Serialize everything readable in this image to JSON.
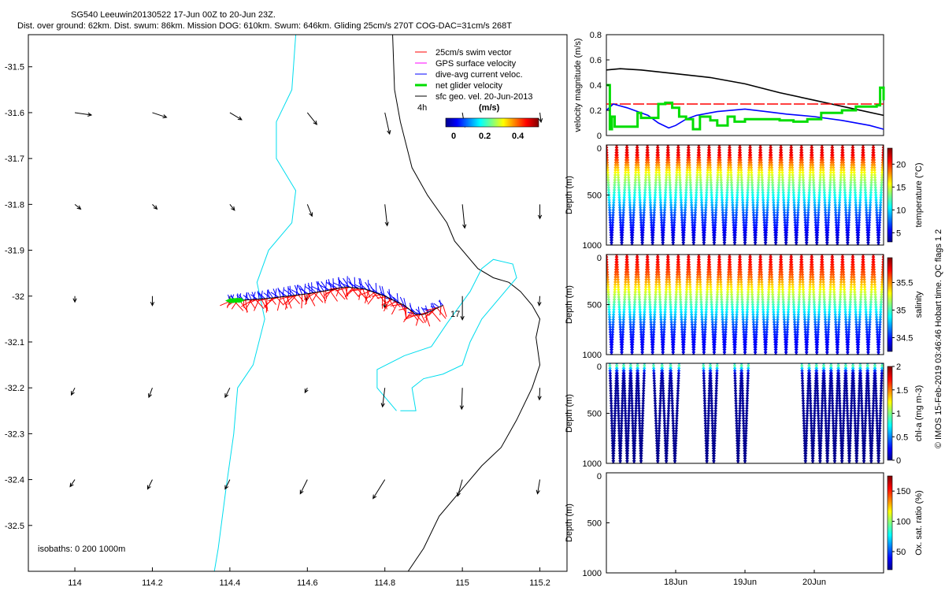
{
  "header": {
    "title": "SG540 Leeuwin20130522 17-Jun 00Z to 20-Jun 23Z.",
    "subtitle": "Dist. over ground: 62km. Dist. swum: 86km. Mission DOG: 610km. Swum: 646km. Gliding 25cm/s 270T COG-DAC=31cm/s 268T"
  },
  "side_caption": "© IMOS 15-Feb-2019 03:46:46 Hobart time. QC flags 1  2",
  "colors": {
    "swim": "#ff0000",
    "gps": "#ff00ff",
    "dac": "#0000ff",
    "net": "#00dd00",
    "geo": "#000000",
    "isobath": "#00ddee",
    "coast": "#000000"
  },
  "chart_data": [
    {
      "type": "scatter",
      "name": "track-map",
      "xlim": [
        113.88,
        115.27
      ],
      "ylim": [
        -32.6,
        -31.43
      ],
      "xticks": [
        114,
        114.2,
        114.4,
        114.6,
        114.8,
        115,
        115.2
      ],
      "xtick_labels": [
        "114",
        "114.2",
        "114.4",
        "114.6",
        "114.8",
        "115",
        "115.2"
      ],
      "yticks": [
        -31.5,
        -31.6,
        -31.7,
        -31.8,
        -31.9,
        -32,
        -32.1,
        -32.2,
        -32.3,
        -32.4,
        -32.5
      ],
      "ytick_labels": [
        "-31.5",
        "-31.6",
        "-31.7",
        "-31.8",
        "-31.9",
        "-32",
        "-32.1",
        "-32.2",
        "-32.3",
        "-32.4",
        "-32.5"
      ],
      "legend": [
        "25cm/s swim vector",
        "GPS surface velocity",
        "dive-avg current veloc.",
        "net glider velocity",
        "sfc geo. vel. 20-Jun-2013"
      ],
      "interval_label": "4h",
      "colorbar": {
        "label": "(m/s)",
        "ticks": [
          0,
          0.2,
          0.4
        ],
        "tick_labels": [
          "0",
          "0.2",
          "0.4"
        ],
        "range": [
          0,
          0.55
        ]
      },
      "isobath_label": "isobaths:  0    200   1000m",
      "day_marker": "17",
      "geo_vectors_grid": {
        "lon": [
          114,
          114.2,
          114.4,
          114.6,
          114.8,
          115,
          115.2
        ],
        "lat": [
          -31.6,
          -31.8,
          -32,
          -32.2,
          -32.4
        ],
        "u": [
          [
            0.07,
            0.06,
            0.05,
            0.04,
            0.02,
            0.01,
            0.005
          ],
          [
            0.025,
            0.02,
            0.02,
            0.02,
            0.01,
            0.01,
            0.0
          ],
          [
            0.0,
            0.0,
            0.0,
            -0.005,
            0.0,
            0.0,
            -0.003
          ],
          [
            -0.015,
            -0.015,
            -0.02,
            -0.01,
            -0.01,
            -0.003,
            -0.002
          ],
          [
            -0.02,
            -0.02,
            -0.02,
            -0.03,
            -0.05,
            -0.02,
            -0.01
          ]
        ],
        "v": [
          [
            -0.01,
            -0.02,
            -0.03,
            -0.05,
            -0.09,
            -0.06,
            -0.04
          ],
          [
            -0.02,
            -0.02,
            -0.025,
            -0.05,
            -0.09,
            -0.1,
            -0.06
          ],
          [
            -0.025,
            -0.04,
            -0.03,
            -0.02,
            -0.05,
            -0.1,
            -0.04
          ],
          [
            -0.03,
            -0.04,
            -0.04,
            -0.02,
            -0.08,
            -0.09,
            -0.05
          ],
          [
            -0.03,
            -0.04,
            -0.04,
            -0.06,
            -0.08,
            -0.07,
            -0.06
          ]
        ]
      },
      "glider_track": {
        "lon": [
          114.4,
          114.45,
          114.5,
          114.55,
          114.6,
          114.65,
          114.7,
          114.75,
          114.8,
          114.85,
          114.88,
          114.9,
          114.95
        ],
        "lat": [
          -32.01,
          -32.008,
          -32.005,
          -32.0,
          -31.995,
          -31.988,
          -31.98,
          -31.985,
          -32.0,
          -32.02,
          -32.04,
          -32.04,
          -32.02
        ]
      },
      "swim_vector_count": 110,
      "dac_vector_count": 110,
      "isobaths": {
        "0m": [
          [
            [
              114.82,
              -31.43
            ],
            [
              114.825,
              -31.55
            ],
            [
              114.84,
              -31.62
            ],
            [
              114.87,
              -31.72
            ],
            [
              114.91,
              -31.78
            ],
            [
              114.96,
              -31.84
            ],
            [
              114.98,
              -31.88
            ],
            [
              115.04,
              -31.94
            ],
            [
              115.08,
              -31.96
            ],
            [
              115.12,
              -31.97
            ],
            [
              115.15,
              -31.99
            ],
            [
              115.18,
              -32.02
            ],
            [
              115.2,
              -32.05
            ],
            [
              115.19,
              -32.09
            ],
            [
              115.2,
              -32.15
            ],
            [
              115.18,
              -32.2
            ],
            [
              115.14,
              -32.27
            ],
            [
              115.1,
              -32.33
            ],
            [
              115.05,
              -32.37
            ],
            [
              115.0,
              -32.42
            ],
            [
              114.94,
              -32.48
            ],
            [
              114.9,
              -32.55
            ],
            [
              114.86,
              -32.6
            ]
          ]
        ],
        "200m": [
          [
            [
              114.57,
              -31.43
            ],
            [
              114.56,
              -31.55
            ],
            [
              114.52,
              -31.62
            ],
            [
              114.52,
              -31.7
            ],
            [
              114.57,
              -31.77
            ],
            [
              114.56,
              -31.84
            ],
            [
              114.5,
              -31.9
            ],
            [
              114.47,
              -31.97
            ],
            [
              114.49,
              -32.05
            ],
            [
              114.46,
              -32.15
            ],
            [
              114.42,
              -32.2
            ],
            [
              114.41,
              -32.3
            ],
            [
              114.39,
              -32.42
            ],
            [
              114.37,
              -32.55
            ],
            [
              114.36,
              -32.6
            ]
          ],
          [
            [
              114.83,
              -32.25
            ],
            [
              114.8,
              -32.22
            ],
            [
              114.78,
              -32.2
            ],
            [
              114.78,
              -32.16
            ],
            [
              114.85,
              -32.13
            ],
            [
              114.92,
              -32.11
            ],
            [
              114.96,
              -32.06
            ],
            [
              115.02,
              -31.99
            ],
            [
              115.05,
              -31.94
            ],
            [
              115.08,
              -31.92
            ],
            [
              115.13,
              -31.93
            ],
            [
              115.14,
              -31.96
            ],
            [
              115.1,
              -32.0
            ],
            [
              115.05,
              -32.05
            ],
            [
              115.02,
              -32.1
            ],
            [
              115.0,
              -32.15
            ],
            [
              114.95,
              -32.17
            ],
            [
              114.9,
              -32.18
            ],
            [
              114.87,
              -32.2
            ],
            [
              114.88,
              -32.25
            ],
            [
              114.84,
              -32.25
            ]
          ]
        ]
      }
    },
    {
      "type": "line",
      "name": "velocity-magnitude",
      "ylabel": "velocity magnitude (m/s)",
      "xlim": [
        17.0,
        21.0
      ],
      "ylim": [
        0,
        0.8
      ],
      "yticks": [
        0,
        0.2,
        0.4,
        0.6,
        0.8
      ],
      "ytick_labels": [
        "0",
        "0.2",
        "0.4",
        "0.6",
        "0.8"
      ],
      "series": [
        {
          "name": "sfc geo. vel.",
          "color": "#000000",
          "x": [
            17.0,
            17.2,
            17.5,
            18.0,
            18.5,
            19.0,
            19.5,
            20.0,
            20.5,
            21.0
          ],
          "y": [
            0.52,
            0.53,
            0.52,
            0.49,
            0.46,
            0.41,
            0.34,
            0.28,
            0.22,
            0.16
          ]
        },
        {
          "name": "25cm/s swim vector",
          "color": "#ff0000",
          "x": [
            17.0,
            21.0
          ],
          "y": [
            0.25,
            0.25
          ]
        },
        {
          "name": "dive-avg current veloc.",
          "color": "#0000ff",
          "x": [
            17.0,
            17.1,
            17.3,
            17.6,
            17.75,
            17.9,
            18.0,
            18.15,
            18.3,
            18.6,
            19.0,
            19.3,
            19.6,
            20.0,
            20.4,
            20.8,
            21.0
          ],
          "y": [
            0.2,
            0.25,
            0.22,
            0.16,
            0.1,
            0.06,
            0.08,
            0.13,
            0.16,
            0.19,
            0.21,
            0.19,
            0.17,
            0.15,
            0.12,
            0.08,
            0.05
          ]
        },
        {
          "name": "net glider velocity",
          "color": "#00dd00",
          "x": [
            17.0,
            17.05,
            17.08,
            17.12,
            17.3,
            17.45,
            17.5,
            17.7,
            17.75,
            17.85,
            17.95,
            18.05,
            18.15,
            18.25,
            18.35,
            18.5,
            18.6,
            18.75,
            18.85,
            19.0,
            19.3,
            19.5,
            19.7,
            19.9,
            20.1,
            20.4,
            20.6,
            20.9,
            20.95,
            21.0
          ],
          "y": [
            0.4,
            0.05,
            0.15,
            0.07,
            0.07,
            0.18,
            0.14,
            0.14,
            0.25,
            0.26,
            0.22,
            0.15,
            0.13,
            0.05,
            0.15,
            0.12,
            0.08,
            0.15,
            0.11,
            0.13,
            0.13,
            0.12,
            0.11,
            0.13,
            0.18,
            0.2,
            0.23,
            0.24,
            0.38,
            0.28
          ]
        }
      ]
    },
    {
      "type": "scatter",
      "name": "temperature-section",
      "ylabel": "Depth (m)",
      "yticks": [
        0,
        500,
        1000
      ],
      "ytick_labels": [
        "0",
        "500",
        "1000"
      ],
      "ylim": [
        1000,
        0
      ],
      "xlim": [
        17.0,
        21.0
      ],
      "dives": 27,
      "dive_depth_m": 1000,
      "colorbar": {
        "label": "temperature (°C)",
        "range": [
          3,
          23.5
        ],
        "ticks": [
          5,
          10,
          15,
          20
        ],
        "tick_labels": [
          "5",
          "10",
          "15",
          "20"
        ]
      },
      "profile": {
        "depth": [
          0,
          100,
          200,
          300,
          400,
          500,
          600,
          700,
          800,
          900,
          1000
        ],
        "value": [
          22,
          21,
          18,
          15,
          13,
          11,
          9,
          7,
          6,
          5,
          4
        ]
      }
    },
    {
      "type": "scatter",
      "name": "salinity-section",
      "ylabel": "Depth (m)",
      "yticks": [
        0,
        500,
        1000
      ],
      "ytick_labels": [
        "0",
        "500",
        "1000"
      ],
      "ylim": [
        1000,
        0
      ],
      "xlim": [
        17.0,
        21.0
      ],
      "dives": 27,
      "dive_depth_m": 1000,
      "colorbar": {
        "label": "salinity",
        "range": [
          34.25,
          35.95
        ],
        "ticks": [
          34.5,
          35,
          35.5
        ],
        "tick_labels": [
          "34.5",
          "35",
          "35.5"
        ]
      },
      "profile": {
        "depth": [
          0,
          100,
          200,
          300,
          400,
          500,
          600,
          700,
          800,
          900,
          1000
        ],
        "value": [
          35.8,
          35.7,
          35.6,
          35.4,
          35.2,
          35.0,
          34.8,
          34.6,
          34.5,
          34.45,
          34.4
        ]
      }
    },
    {
      "type": "scatter",
      "name": "chla-section",
      "ylabel": "Depth (m)",
      "yticks": [
        0,
        500,
        1000
      ],
      "ytick_labels": [
        "0",
        "500",
        "1000"
      ],
      "ylim": [
        1000,
        0
      ],
      "xlim": [
        17.0,
        21.0
      ],
      "dive_depth_m": 1000,
      "dive_segments": [
        [
          17.05,
          17.55
        ],
        [
          17.68,
          18.05
        ],
        [
          18.4,
          18.6
        ],
        [
          18.85,
          19.05
        ],
        [
          19.82,
          20.98
        ]
      ],
      "colorbar": {
        "label": "chl-a (mg m-3)",
        "range": [
          0,
          2
        ],
        "ticks": [
          0,
          0.5,
          1,
          1.5,
          2
        ],
        "tick_labels": [
          "0",
          "0.5",
          "1",
          "1.5",
          "2"
        ]
      },
      "profile": {
        "depth": [
          0,
          30,
          60,
          100,
          200,
          1000
        ],
        "value": [
          0.6,
          1.0,
          0.5,
          0.15,
          0.05,
          0.02
        ]
      }
    },
    {
      "type": "scatter",
      "name": "oxygen-section",
      "ylabel": "Depth (m)",
      "yticks": [
        0,
        500,
        1000
      ],
      "ytick_labels": [
        "0",
        "500",
        "1000"
      ],
      "ylim": [
        1000,
        0
      ],
      "xlim": [
        17.0,
        21.0
      ],
      "dives": 0,
      "xticks": [
        18,
        19,
        20
      ],
      "xtick_labels": [
        "18Jun",
        "19Jun",
        "20Jun"
      ],
      "colorbar": {
        "label": "Ox. sat. ratio (%)",
        "range": [
          20,
          175
        ],
        "ticks": [
          50,
          100,
          150
        ],
        "tick_labels": [
          "50",
          "100",
          "150"
        ]
      }
    }
  ]
}
